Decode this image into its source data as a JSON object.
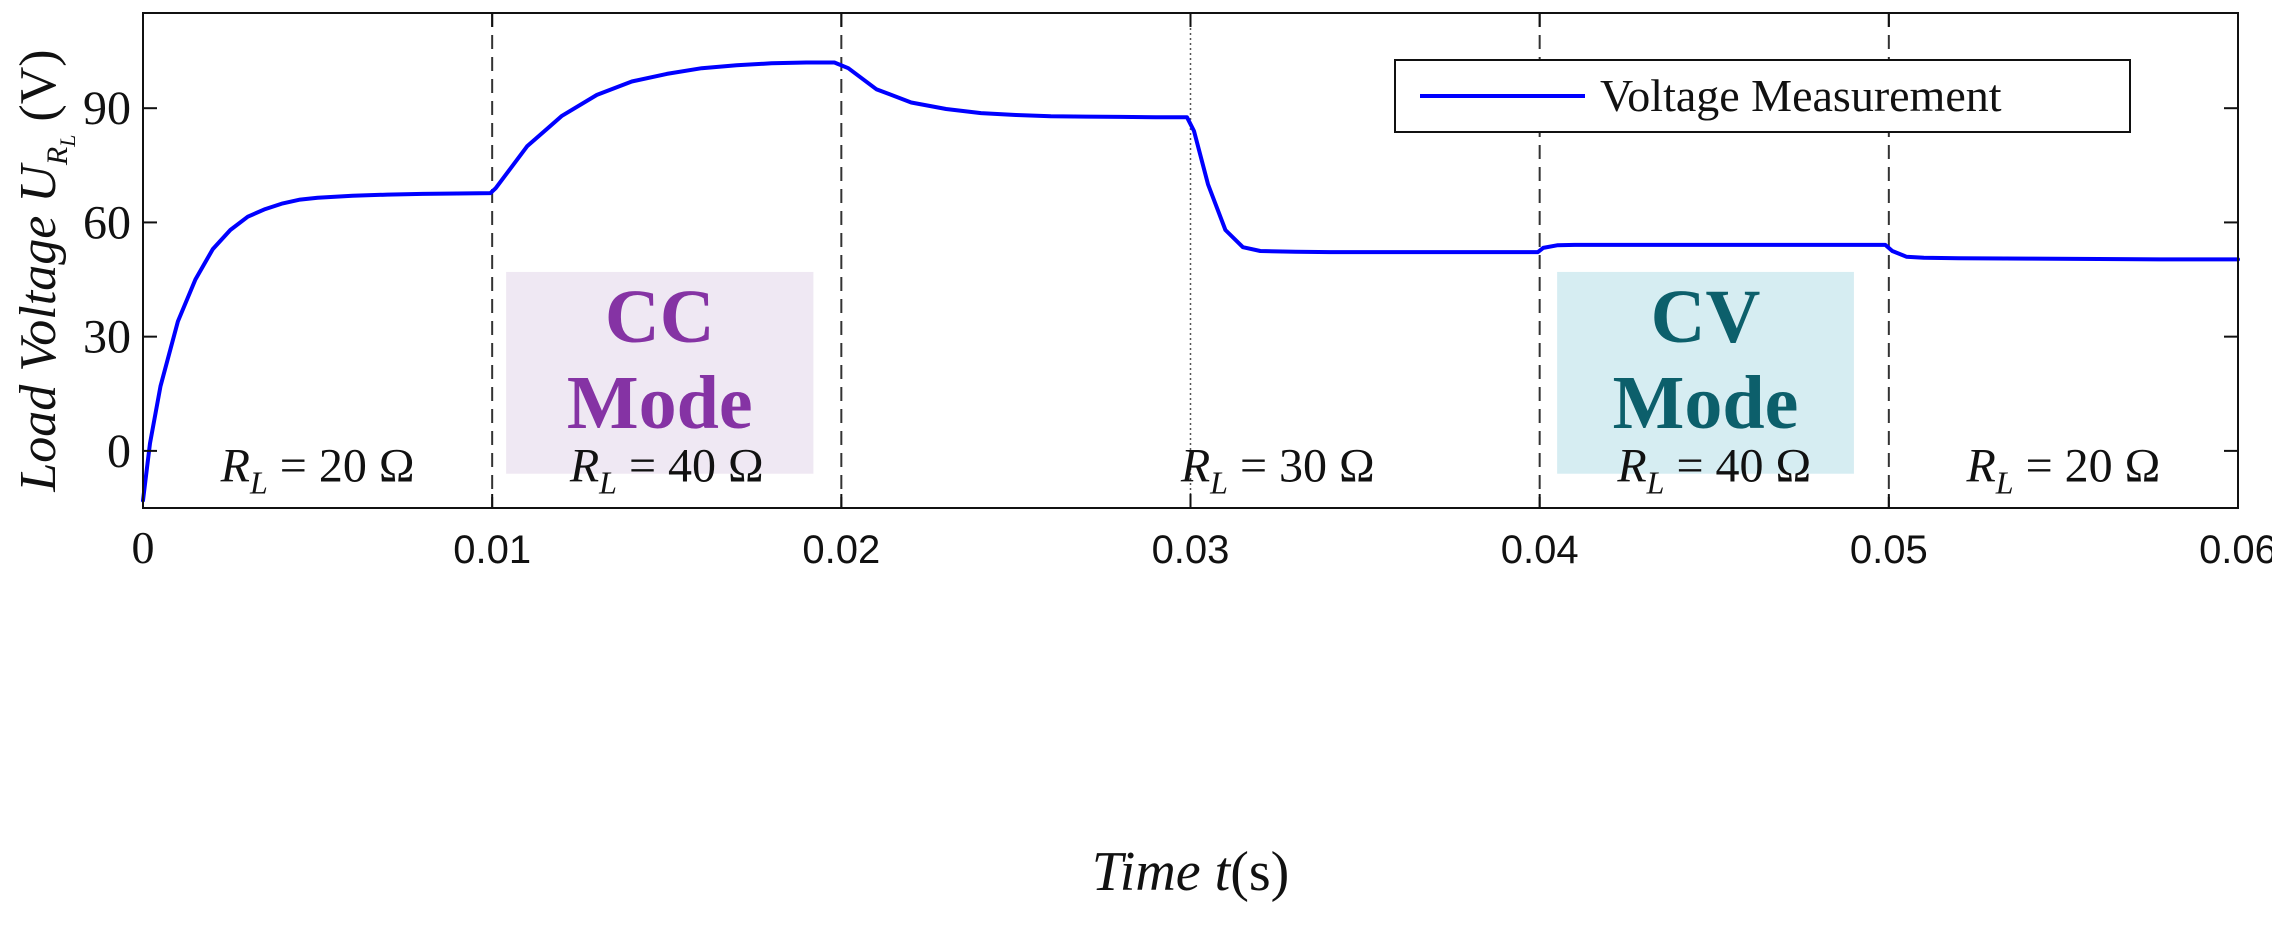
{
  "chart_data": {
    "type": "line",
    "ylabel": {
      "text": "Load Voltage",
      "symbol": "U",
      "subscript": "R",
      "subsubscript": "L",
      "unit": "(V)"
    },
    "xlabel": {
      "text": "Time",
      "symbol": "t",
      "unit": "(s)"
    },
    "xlim": [
      0,
      0.06
    ],
    "ylim": [
      -15,
      115
    ],
    "xticks": [
      {
        "value": 0,
        "label": "0"
      },
      {
        "value": 0.01,
        "label": "0.01"
      },
      {
        "value": 0.02,
        "label": "0.02"
      },
      {
        "value": 0.03,
        "label": "0.03"
      },
      {
        "value": 0.04,
        "label": "0.04"
      },
      {
        "value": 0.05,
        "label": "0.05"
      },
      {
        "value": 0.06,
        "label": "0.06"
      }
    ],
    "yticks": [
      {
        "value": 0,
        "label": "0"
      },
      {
        "value": 30,
        "label": "30"
      },
      {
        "value": 60,
        "label": "60"
      },
      {
        "value": 90,
        "label": "90"
      }
    ],
    "legend": {
      "position": "top-right",
      "entries": [
        {
          "label": "Voltage Measurement",
          "color": "#0000ff"
        }
      ]
    },
    "dividers": [
      {
        "x": 0.01,
        "style": "dashed"
      },
      {
        "x": 0.02,
        "style": "dashed"
      },
      {
        "x": 0.03,
        "style": "dotted"
      },
      {
        "x": 0.04,
        "style": "dashed"
      },
      {
        "x": 0.05,
        "style": "dashed"
      }
    ],
    "segment_labels": [
      {
        "x": 0.005,
        "prefix": "R",
        "subscript": "L",
        "text": " = 20 Ω"
      },
      {
        "x": 0.015,
        "prefix": "R",
        "subscript": "L",
        "text": " = 40 Ω"
      },
      {
        "x": 0.0325,
        "prefix": "R",
        "subscript": "L",
        "text": " = 30 Ω"
      },
      {
        "x": 0.045,
        "prefix": "R",
        "subscript": "L",
        "text": " = 40 Ω"
      },
      {
        "x": 0.055,
        "prefix": "R",
        "subscript": "L",
        "text": " = 20 Ω"
      }
    ],
    "mode_boxes": [
      {
        "name": "cc",
        "x_start": 0.0104,
        "x_end": 0.0192,
        "y_top": 47,
        "y_bottom": -6,
        "line1": "CC",
        "line2": "Mode",
        "bg": "#efe8f3",
        "fg": "#8533a4"
      },
      {
        "name": "cv",
        "x_start": 0.0405,
        "x_end": 0.049,
        "y_top": 47,
        "y_bottom": -6,
        "line1": "CV",
        "line2": "Mode",
        "bg": "#d6edf2",
        "fg": "#0c5f6b"
      }
    ],
    "series": [
      {
        "name": "Voltage Measurement",
        "color": "#0000ff",
        "x": [
          0,
          0.0002,
          0.0005,
          0.001,
          0.0015,
          0.002,
          0.0025,
          0.003,
          0.0035,
          0.004,
          0.0045,
          0.005,
          0.006,
          0.007,
          0.008,
          0.009,
          0.00995,
          0.0101,
          0.011,
          0.012,
          0.013,
          0.014,
          0.015,
          0.016,
          0.017,
          0.018,
          0.019,
          0.0198,
          0.0202,
          0.021,
          0.022,
          0.023,
          0.024,
          0.025,
          0.026,
          0.027,
          0.028,
          0.029,
          0.0299,
          0.0301,
          0.0305,
          0.031,
          0.0315,
          0.032,
          0.033,
          0.034,
          0.035,
          0.036,
          0.037,
          0.038,
          0.039,
          0.03995,
          0.0401,
          0.0405,
          0.041,
          0.042,
          0.044,
          0.046,
          0.048,
          0.0499,
          0.0501,
          0.0505,
          0.051,
          0.052,
          0.054,
          0.056,
          0.058,
          0.06
        ],
        "y": [
          -13,
          2,
          17,
          34,
          45,
          53,
          58,
          61.5,
          63.5,
          65,
          66,
          66.5,
          67,
          67.3,
          67.5,
          67.6,
          67.7,
          69,
          80,
          88,
          93.5,
          97,
          99,
          100.5,
          101.3,
          101.8,
          102,
          102,
          100.5,
          95,
          91.5,
          89.8,
          88.7,
          88.2,
          87.9,
          87.8,
          87.7,
          87.6,
          87.6,
          84,
          70,
          58,
          53.5,
          52.5,
          52.3,
          52.2,
          52.2,
          52.2,
          52.2,
          52.2,
          52.2,
          52.2,
          53.3,
          54,
          54.1,
          54.1,
          54.1,
          54.1,
          54.1,
          54.1,
          52.5,
          51,
          50.7,
          50.6,
          50.5,
          50.4,
          50.3,
          50.3
        ]
      }
    ]
  }
}
